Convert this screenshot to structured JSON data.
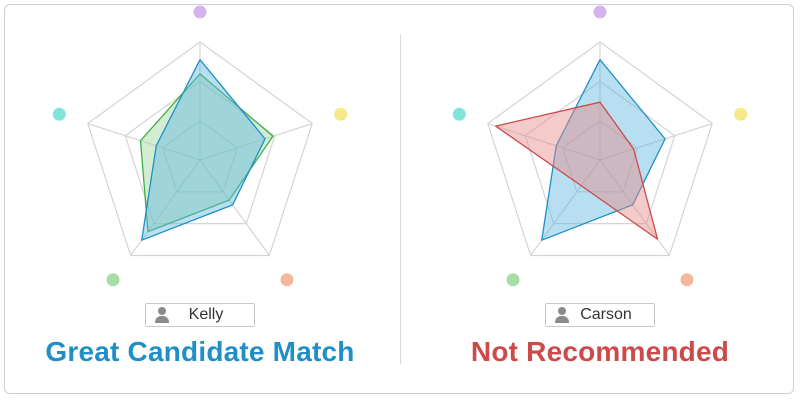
{
  "axis_dot_colors": [
    "#d7b3ec",
    "#f5e98a",
    "#f5b79e",
    "#a6dea6",
    "#7ee5d8"
  ],
  "candidates": [
    {
      "name": "Kelly",
      "verdict": "Great Candidate Match",
      "verdict_color": "#1f8fc6",
      "profiles": [
        {
          "role": "ideal",
          "fill": "#9ed69e",
          "stroke": "#3fae4c",
          "opacity": 0.45,
          "values": [
            0.73,
            0.65,
            0.42,
            0.75,
            0.53
          ]
        },
        {
          "role": "candidate",
          "fill": "#5fb8e0",
          "stroke": "#1f8fc6",
          "opacity": 0.45,
          "values": [
            0.85,
            0.58,
            0.47,
            0.84,
            0.39
          ]
        }
      ]
    },
    {
      "name": "Carson",
      "verdict": "Not Recommended",
      "verdict_color": "#cc4a4a",
      "profiles": [
        {
          "role": "ideal",
          "fill": "#5fb8e0",
          "stroke": "#1f8fc6",
          "opacity": 0.45,
          "values": [
            0.85,
            0.58,
            0.47,
            0.84,
            0.39
          ]
        },
        {
          "role": "candidate",
          "fill": "#e88a8a",
          "stroke": "#cc4a4a",
          "opacity": 0.45,
          "values": [
            0.49,
            0.3,
            0.83,
            0.27,
            0.93
          ]
        }
      ]
    }
  ]
}
